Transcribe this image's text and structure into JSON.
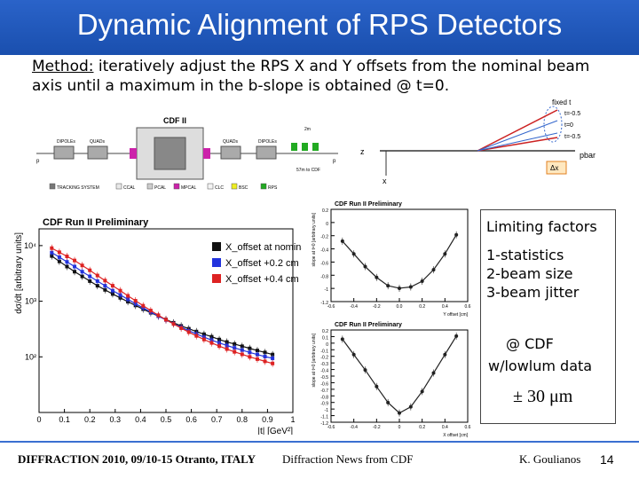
{
  "slide": {
    "title": "Dynamic Alignment of RPS Detectors",
    "method_label": "Method:",
    "method_text": " iteratively adjust the RPS X and Y offsets from the nominal beam axis until a maximum in the b-slope is obtained @ t=0."
  },
  "cdf_schematic": {
    "label": "CDF II",
    "dipole_left": "DIPOLEs",
    "quad_left": "QUADs",
    "quad_right": "QUADs",
    "dipole_right": "DIPOLEs",
    "p_label": "p",
    "pbar_label": "p",
    "scale_label": "2m",
    "distance_label": "57m to CDF",
    "legend": [
      {
        "label": "TRACKING SYSTEM",
        "color": "#777777"
      },
      {
        "label": "CCAL",
        "color": "#e8e8e8"
      },
      {
        "label": "PCAL",
        "color": "#cccccc"
      },
      {
        "label": "MPCAL",
        "color": "#cc22aa"
      },
      {
        "label": "CLC",
        "color": "#f4f4f4"
      },
      {
        "label": "BSC",
        "color": "#eeee22"
      },
      {
        "label": "RPS",
        "color": "#22aa22"
      }
    ]
  },
  "offset_diagram": {
    "fixed_label": "fixed t",
    "t_labels": [
      "t=-0.5",
      "t=0",
      "t=-0.5"
    ],
    "z_label": "z",
    "x_label": "x",
    "pbar_label": "pbar",
    "dx_label": "Δx"
  },
  "sidebox": {
    "limiting": "Limiting factors",
    "factor1": "1-statistics",
    "factor2": "2-beam size",
    "factor3": "3-beam jitter",
    "cdf": "@ CDF",
    "lowlum": "w/lowlum  data",
    "precision": "± 30 μm"
  },
  "footer": {
    "conference": "DIFFRACTION 2010, 09/10-15 Otranto, ITALY",
    "center": "Diffraction News from CDF",
    "author": "K. Goulianos",
    "page": "14"
  },
  "chart_data": [
    {
      "type": "scatter",
      "title": "CDF Run II Preliminary",
      "xlabel": "|t| [GeV²]",
      "ylabel": "dσ/dt [arbitrary units]",
      "yscale": "log",
      "xlim": [
        0,
        1
      ],
      "ylim": [
        10,
        20000
      ],
      "x_ticks": [
        "0",
        "0.1",
        "0.2",
        "0.3",
        "0.4",
        "0.5",
        "0.6",
        "0.7",
        "0.8",
        "0.9",
        "1"
      ],
      "y_ticks": [
        "10⁴",
        "10³",
        "10²"
      ],
      "legend_position": "top-right",
      "series": [
        {
          "name": "X_offset at nominal",
          "color": "#111111",
          "x": [
            0.05,
            0.08,
            0.11,
            0.14,
            0.17,
            0.2,
            0.23,
            0.26,
            0.29,
            0.32,
            0.35,
            0.38,
            0.41,
            0.44,
            0.47,
            0.5,
            0.53,
            0.56,
            0.59,
            0.62,
            0.65,
            0.68,
            0.71,
            0.74,
            0.77,
            0.8,
            0.83,
            0.86,
            0.89,
            0.92
          ],
          "y": [
            6500,
            5200,
            4200,
            3400,
            2800,
            2300,
            1900,
            1600,
            1350,
            1150,
            980,
            840,
            720,
            620,
            540,
            470,
            410,
            360,
            320,
            285,
            255,
            230,
            205,
            185,
            170,
            155,
            142,
            130,
            120,
            110
          ]
        },
        {
          "name": "X_offset +0.2 cm",
          "color": "#2233dd",
          "x": [
            0.05,
            0.08,
            0.11,
            0.14,
            0.17,
            0.2,
            0.23,
            0.26,
            0.29,
            0.32,
            0.35,
            0.38,
            0.41,
            0.44,
            0.47,
            0.5,
            0.53,
            0.56,
            0.59,
            0.62,
            0.65,
            0.68,
            0.71,
            0.74,
            0.77,
            0.8,
            0.83,
            0.86,
            0.89,
            0.92
          ],
          "y": [
            7500,
            6200,
            5100,
            4200,
            3400,
            2800,
            2300,
            1900,
            1550,
            1300,
            1080,
            900,
            760,
            640,
            540,
            460,
            395,
            340,
            295,
            258,
            226,
            200,
            178,
            160,
            145,
            132,
            120,
            110,
            101,
            94
          ]
        },
        {
          "name": "X_offset +0.4 cm",
          "color": "#dd2222",
          "x": [
            0.05,
            0.08,
            0.11,
            0.14,
            0.17,
            0.2,
            0.23,
            0.26,
            0.29,
            0.32,
            0.35,
            0.38,
            0.41,
            0.44,
            0.47,
            0.5,
            0.53,
            0.56,
            0.59,
            0.62,
            0.65,
            0.68,
            0.71,
            0.74,
            0.77,
            0.8,
            0.83,
            0.86,
            0.89,
            0.92
          ],
          "y": [
            9000,
            7600,
            6400,
            5400,
            4400,
            3600,
            2900,
            2350,
            1900,
            1550,
            1250,
            1020,
            830,
            680,
            560,
            465,
            390,
            328,
            278,
            238,
            205,
            178,
            156,
            138,
            123,
            111,
            100,
            91,
            83,
            76
          ]
        }
      ]
    },
    {
      "type": "scatter",
      "title": "CDF Run II Preliminary",
      "xlabel": "Y offset [cm]",
      "ylabel": "slope at t=0 [arbitrary units]",
      "xlim": [
        -0.6,
        0.6
      ],
      "ylim": [
        -1.2,
        0.25
      ],
      "x_ticks": [
        "-0.6",
        "-0.4",
        "-0.2",
        "0.0",
        "0.2",
        "0.4",
        "0.6"
      ],
      "y_ticks": [
        "0.2",
        "0",
        "-0.2",
        "-0.4",
        "-0.6",
        "-0.8",
        "-1",
        "-1.2"
      ],
      "series": [
        {
          "name": "",
          "color": "#222222",
          "x": [
            -0.5,
            -0.4,
            -0.3,
            -0.2,
            -0.1,
            0.0,
            0.1,
            0.2,
            0.3,
            0.4,
            0.5
          ],
          "y": [
            -0.25,
            -0.45,
            -0.65,
            -0.82,
            -0.95,
            -0.99,
            -0.97,
            -0.88,
            -0.7,
            -0.45,
            -0.15
          ]
        }
      ]
    },
    {
      "type": "scatter",
      "title": "CDF Run II Preliminary",
      "xlabel": "X offset [cm]",
      "ylabel": "slope at t=0 [arbitrary units]",
      "xlim": [
        -0.6,
        0.6
      ],
      "ylim": [
        -1.2,
        0.3
      ],
      "x_ticks": [
        "-0.6",
        "-0.4",
        "-0.2",
        "0",
        "0.2",
        "0.4",
        "0.6"
      ],
      "y_ticks": [
        "0.2",
        "0.1",
        "0",
        "-0.1",
        "-0.2",
        "-0.3",
        "-0.4",
        "-0.5",
        "-0.6",
        "-0.7",
        "-0.8",
        "-0.9",
        "-1",
        "-1.1",
        "-1.2"
      ],
      "series": [
        {
          "name": "",
          "color": "#222222",
          "x": [
            -0.5,
            -0.4,
            -0.3,
            -0.2,
            -0.1,
            0.0,
            0.1,
            0.2,
            0.3,
            0.4,
            0.5
          ],
          "y": [
            0.15,
            -0.1,
            -0.35,
            -0.62,
            -0.88,
            -1.05,
            -0.95,
            -0.7,
            -0.4,
            -0.1,
            0.2
          ]
        }
      ]
    }
  ]
}
